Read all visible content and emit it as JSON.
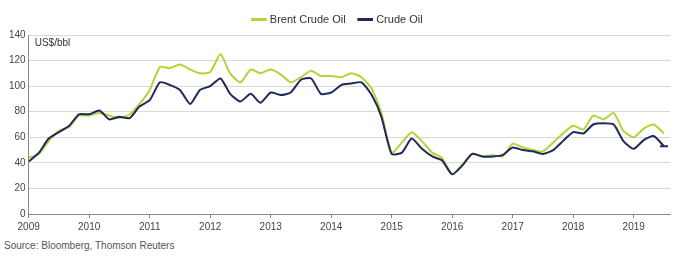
{
  "chart_data": {
    "type": "line",
    "y_label": "US$/bbl",
    "source": "Source: Bloomberg, Thomson Reuters",
    "x": [
      2009,
      2009.17,
      2009.33,
      2009.5,
      2009.67,
      2009.83,
      2010,
      2010.17,
      2010.33,
      2010.5,
      2010.67,
      2010.83,
      2011,
      2011.17,
      2011.33,
      2011.5,
      2011.67,
      2011.83,
      2012,
      2012.17,
      2012.33,
      2012.5,
      2012.67,
      2012.83,
      2013,
      2013.17,
      2013.33,
      2013.5,
      2013.67,
      2013.83,
      2014,
      2014.17,
      2014.33,
      2014.5,
      2014.67,
      2014.83,
      2015,
      2015.17,
      2015.33,
      2015.5,
      2015.67,
      2015.83,
      2016,
      2016.17,
      2016.33,
      2016.5,
      2016.67,
      2016.83,
      2017,
      2017.17,
      2017.33,
      2017.5,
      2017.67,
      2017.83,
      2018,
      2018.17,
      2018.33,
      2018.5,
      2018.67,
      2018.83,
      2019,
      2019.17,
      2019.33,
      2019.5
    ],
    "series": [
      {
        "name": "Brent Crude Oil",
        "color": "#b5d334",
        "values": [
          44,
          47,
          57,
          65,
          68,
          77,
          77,
          79,
          77,
          75,
          78,
          86,
          97,
          115,
          114,
          117,
          113,
          110,
          111,
          125,
          110,
          103,
          113,
          110,
          113,
          109,
          103,
          107,
          112,
          108,
          108,
          107,
          110,
          107,
          98,
          79,
          48,
          56,
          64,
          57,
          48,
          44,
          31,
          39,
          47,
          45,
          46,
          45,
          55,
          52,
          50,
          49,
          56,
          63,
          69,
          66,
          77,
          74,
          79,
          65,
          60,
          67,
          70,
          63
        ]
      },
      {
        "name": "Crude Oil",
        "color": "#1f2a5c",
        "values": [
          41,
          48,
          59,
          64,
          69,
          78,
          78,
          81,
          74,
          76,
          75,
          84,
          89,
          103,
          101,
          97,
          86,
          97,
          100,
          106,
          94,
          88,
          94,
          87,
          95,
          93,
          95,
          105,
          106,
          94,
          95,
          101,
          102,
          103,
          93,
          76,
          47,
          48,
          59,
          51,
          45,
          42,
          31,
          38,
          47,
          45,
          45,
          46,
          52,
          50,
          49,
          47,
          50,
          57,
          64,
          63,
          70,
          71,
          70,
          57,
          51,
          58,
          61,
          53
        ]
      }
    ],
    "xlim": [
      2009,
      2019.6
    ],
    "xticks": [
      2009,
      2010,
      2011,
      2012,
      2013,
      2014,
      2015,
      2016,
      2017,
      2018,
      2019
    ],
    "ylim": [
      0,
      140
    ],
    "yticks": [
      0,
      20,
      40,
      60,
      80,
      100,
      120,
      140
    ],
    "grid": true,
    "legend": "top"
  }
}
